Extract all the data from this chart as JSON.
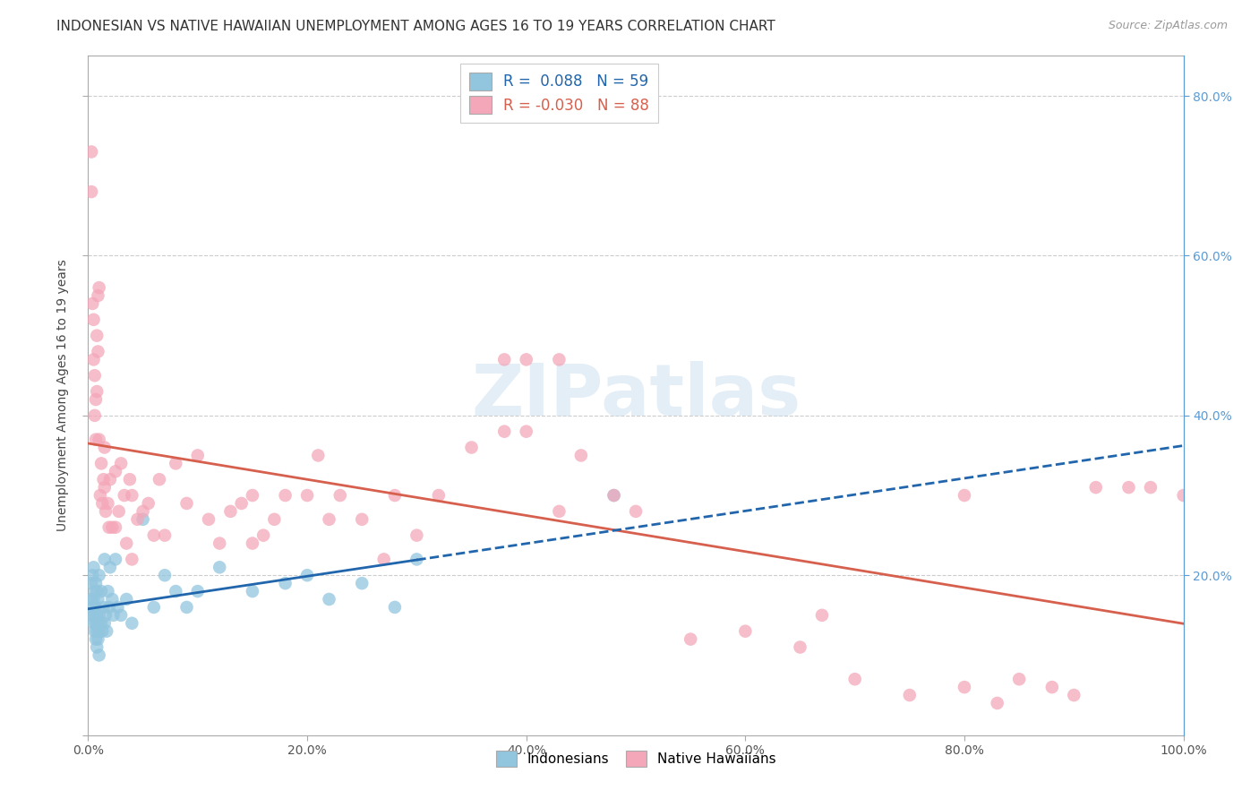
{
  "title": "INDONESIAN VS NATIVE HAWAIIAN UNEMPLOYMENT AMONG AGES 16 TO 19 YEARS CORRELATION CHART",
  "source": "Source: ZipAtlas.com",
  "ylabel": "Unemployment Among Ages 16 to 19 years",
  "xlim": [
    0,
    1.0
  ],
  "ylim": [
    0,
    0.85
  ],
  "legend_r_indonesian": "0.088",
  "legend_n_indonesian": "59",
  "legend_r_hawaiian": "-0.030",
  "legend_n_hawaiian": "88",
  "indonesian_color": "#92c5de",
  "hawaiian_color": "#f4a7b9",
  "indonesian_trend_color": "#2166ac",
  "hawaiian_trend_color": "#d6604d",
  "background_color": "#ffffff",
  "grid_color": "#cccccc",
  "watermark": "ZIPatlas",
  "title_fontsize": 11,
  "source_fontsize": 9,
  "axis_label_fontsize": 10,
  "indonesian_x": [
    0.003,
    0.003,
    0.003,
    0.004,
    0.004,
    0.005,
    0.005,
    0.005,
    0.006,
    0.006,
    0.006,
    0.007,
    0.007,
    0.007,
    0.007,
    0.008,
    0.008,
    0.008,
    0.008,
    0.009,
    0.009,
    0.009,
    0.01,
    0.01,
    0.01,
    0.01,
    0.012,
    0.012,
    0.013,
    0.014,
    0.015,
    0.015,
    0.016,
    0.017,
    0.018,
    0.019,
    0.02,
    0.022,
    0.023,
    0.025,
    0.027,
    0.03,
    0.035,
    0.04,
    0.05,
    0.06,
    0.07,
    0.08,
    0.09,
    0.1,
    0.12,
    0.15,
    0.18,
    0.2,
    0.22,
    0.25,
    0.28,
    0.3,
    0.48
  ],
  "indonesian_y": [
    0.15,
    0.17,
    0.19,
    0.16,
    0.2,
    0.14,
    0.17,
    0.21,
    0.13,
    0.15,
    0.18,
    0.12,
    0.14,
    0.16,
    0.19,
    0.11,
    0.13,
    0.15,
    0.18,
    0.12,
    0.14,
    0.17,
    0.1,
    0.13,
    0.15,
    0.2,
    0.14,
    0.18,
    0.13,
    0.16,
    0.14,
    0.22,
    0.15,
    0.13,
    0.18,
    0.16,
    0.21,
    0.17,
    0.15,
    0.22,
    0.16,
    0.15,
    0.17,
    0.14,
    0.27,
    0.16,
    0.2,
    0.18,
    0.16,
    0.18,
    0.21,
    0.18,
    0.19,
    0.2,
    0.17,
    0.19,
    0.16,
    0.22,
    0.3
  ],
  "hawaiian_x": [
    0.003,
    0.003,
    0.004,
    0.005,
    0.005,
    0.006,
    0.006,
    0.007,
    0.007,
    0.008,
    0.008,
    0.009,
    0.009,
    0.01,
    0.01,
    0.011,
    0.012,
    0.013,
    0.014,
    0.015,
    0.015,
    0.016,
    0.018,
    0.019,
    0.02,
    0.022,
    0.025,
    0.025,
    0.028,
    0.03,
    0.033,
    0.035,
    0.038,
    0.04,
    0.04,
    0.045,
    0.05,
    0.055,
    0.06,
    0.065,
    0.07,
    0.08,
    0.09,
    0.1,
    0.11,
    0.12,
    0.13,
    0.14,
    0.15,
    0.15,
    0.16,
    0.17,
    0.18,
    0.2,
    0.21,
    0.22,
    0.23,
    0.25,
    0.27,
    0.28,
    0.3,
    0.32,
    0.35,
    0.38,
    0.4,
    0.43,
    0.45,
    0.48,
    0.5,
    0.55,
    0.6,
    0.65,
    0.67,
    0.7,
    0.75,
    0.8,
    0.83,
    0.85,
    0.88,
    0.9,
    0.92,
    0.95,
    0.97,
    1.0,
    0.38,
    0.4,
    0.43,
    0.8
  ],
  "hawaiian_y": [
    0.73,
    0.68,
    0.54,
    0.52,
    0.47,
    0.45,
    0.4,
    0.42,
    0.37,
    0.5,
    0.43,
    0.55,
    0.48,
    0.56,
    0.37,
    0.3,
    0.34,
    0.29,
    0.32,
    0.31,
    0.36,
    0.28,
    0.29,
    0.26,
    0.32,
    0.26,
    0.33,
    0.26,
    0.28,
    0.34,
    0.3,
    0.24,
    0.32,
    0.3,
    0.22,
    0.27,
    0.28,
    0.29,
    0.25,
    0.32,
    0.25,
    0.34,
    0.29,
    0.35,
    0.27,
    0.24,
    0.28,
    0.29,
    0.3,
    0.24,
    0.25,
    0.27,
    0.3,
    0.3,
    0.35,
    0.27,
    0.3,
    0.27,
    0.22,
    0.3,
    0.25,
    0.3,
    0.36,
    0.38,
    0.38,
    0.28,
    0.35,
    0.3,
    0.28,
    0.12,
    0.13,
    0.11,
    0.15,
    0.07,
    0.05,
    0.06,
    0.04,
    0.07,
    0.06,
    0.05,
    0.31,
    0.31,
    0.31,
    0.3,
    0.47,
    0.47,
    0.47,
    0.3
  ]
}
